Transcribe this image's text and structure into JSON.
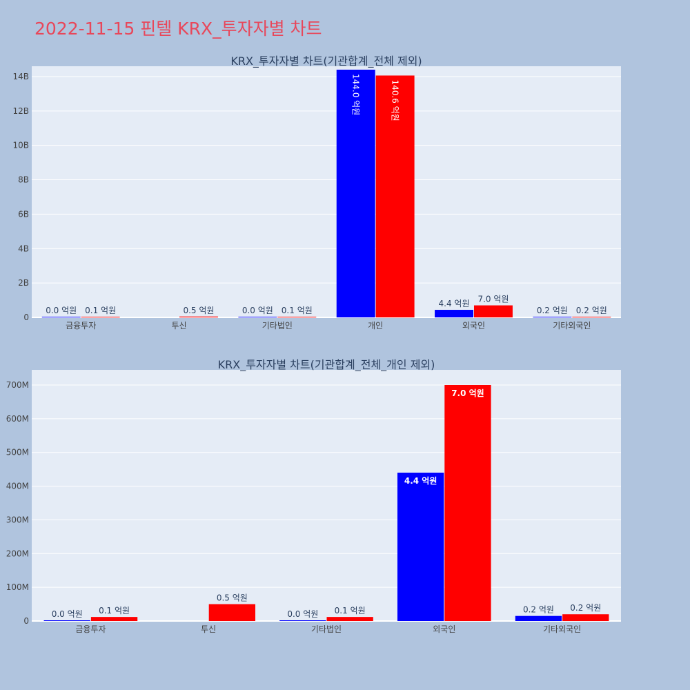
{
  "page": {
    "title": "2022-11-15 핀텔 KRX_투자자별 차트",
    "background": "#b0c4de",
    "title_color": "#e8475a"
  },
  "colors": {
    "plot_bg": "#e5ecf6",
    "grid": "#ffffff",
    "series_a": "#0000ff",
    "series_b": "#ff0000"
  },
  "chart_data": [
    {
      "type": "bar",
      "title": "KRX_투자자별 차트(기관합계_전체 제외)",
      "categories": [
        "금융투자",
        "투신",
        "기타법인",
        "개인",
        "외국인",
        "기타외국인"
      ],
      "series": [
        {
          "color": "#0000ff",
          "values": [
            2000000,
            null,
            2000000,
            14400000000,
            440000000,
            15000000
          ],
          "labels": [
            "0.0 억원",
            "",
            "0.0 억원",
            "144.0 억원",
            "4.4 억원",
            "0.2 억원"
          ]
        },
        {
          "color": "#ff0000",
          "values": [
            12000000,
            50000000,
            12000000,
            14060000000,
            700000000,
            20000000
          ],
          "labels": [
            "0.1 억원",
            "0.5 억원",
            "0.1 억원",
            "140.6 억원",
            "7.0 억원",
            "0.2 억원"
          ]
        }
      ],
      "ylim": [
        0,
        14600000000
      ],
      "yticks": [
        0,
        2000000000,
        4000000000,
        6000000000,
        8000000000,
        10000000000,
        12000000000,
        14000000000
      ],
      "ytick_labels": [
        "0",
        "2B",
        "4B",
        "6B",
        "8B",
        "10B",
        "12B",
        "14B"
      ],
      "grid": true,
      "xlabel": "",
      "ylabel": ""
    },
    {
      "type": "bar",
      "title": "KRX_투자자별 차트(기관합계_전체_개인 제외)",
      "categories": [
        "금융투자",
        "투신",
        "기타법인",
        "외국인",
        "기타외국인"
      ],
      "series": [
        {
          "color": "#0000ff",
          "values": [
            2000000,
            null,
            2000000,
            440000000,
            15000000
          ],
          "labels": [
            "0.0 억원",
            "",
            "0.0 억원",
            "4.4 억원",
            "0.2 억원"
          ]
        },
        {
          "color": "#ff0000",
          "values": [
            12000000,
            50000000,
            12000000,
            700000000,
            20000000
          ],
          "labels": [
            "0.1 억원",
            "0.5 억원",
            "0.1 억원",
            "7.0 억원",
            "0.2 억원"
          ]
        }
      ],
      "ylim": [
        0,
        745000000
      ],
      "yticks": [
        0,
        100000000,
        200000000,
        300000000,
        400000000,
        500000000,
        600000000,
        700000000
      ],
      "ytick_labels": [
        "0",
        "100M",
        "200M",
        "300M",
        "400M",
        "500M",
        "600M",
        "700M"
      ],
      "grid": true,
      "xlabel": "",
      "ylabel": ""
    }
  ]
}
